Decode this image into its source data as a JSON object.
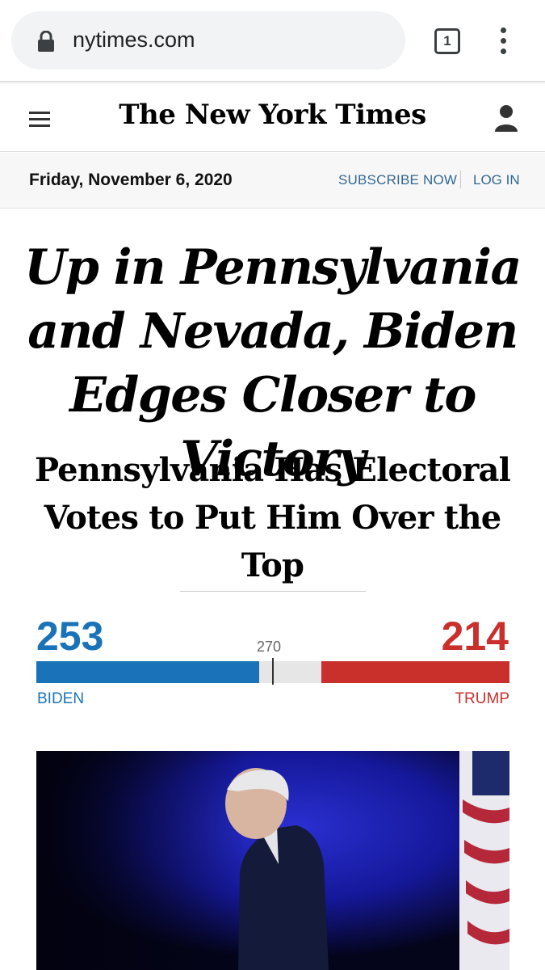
{
  "browser": {
    "url": "nytimes.com",
    "tab_count": "1",
    "icons": [
      "lock-icon",
      "tabs-icon",
      "more-vert-icon"
    ]
  },
  "header": {
    "logo": "The New York Times",
    "icons": [
      "menu-icon",
      "account-icon"
    ]
  },
  "dateline": {
    "date": "Friday, November 6, 2020",
    "subscribe": "SUBSCRIBE NOW",
    "login": "LOG IN"
  },
  "article": {
    "headline": "Up in Pennsylvania and Nevada, Biden Edges Closer to Victory",
    "subhead": "Pennsylvania Has Electoral Votes to Put Him Over the Top"
  },
  "electoral": {
    "left_value": "253",
    "left_name": "BIDEN",
    "right_value": "214",
    "right_name": "TRUMP",
    "threshold": "270",
    "total": 538,
    "left_votes": 253,
    "right_votes": 214,
    "threshold_votes": 270,
    "colors": {
      "left": "#1a73b8",
      "right": "#c9302c",
      "undecided": "#e6e6e6"
    }
  }
}
